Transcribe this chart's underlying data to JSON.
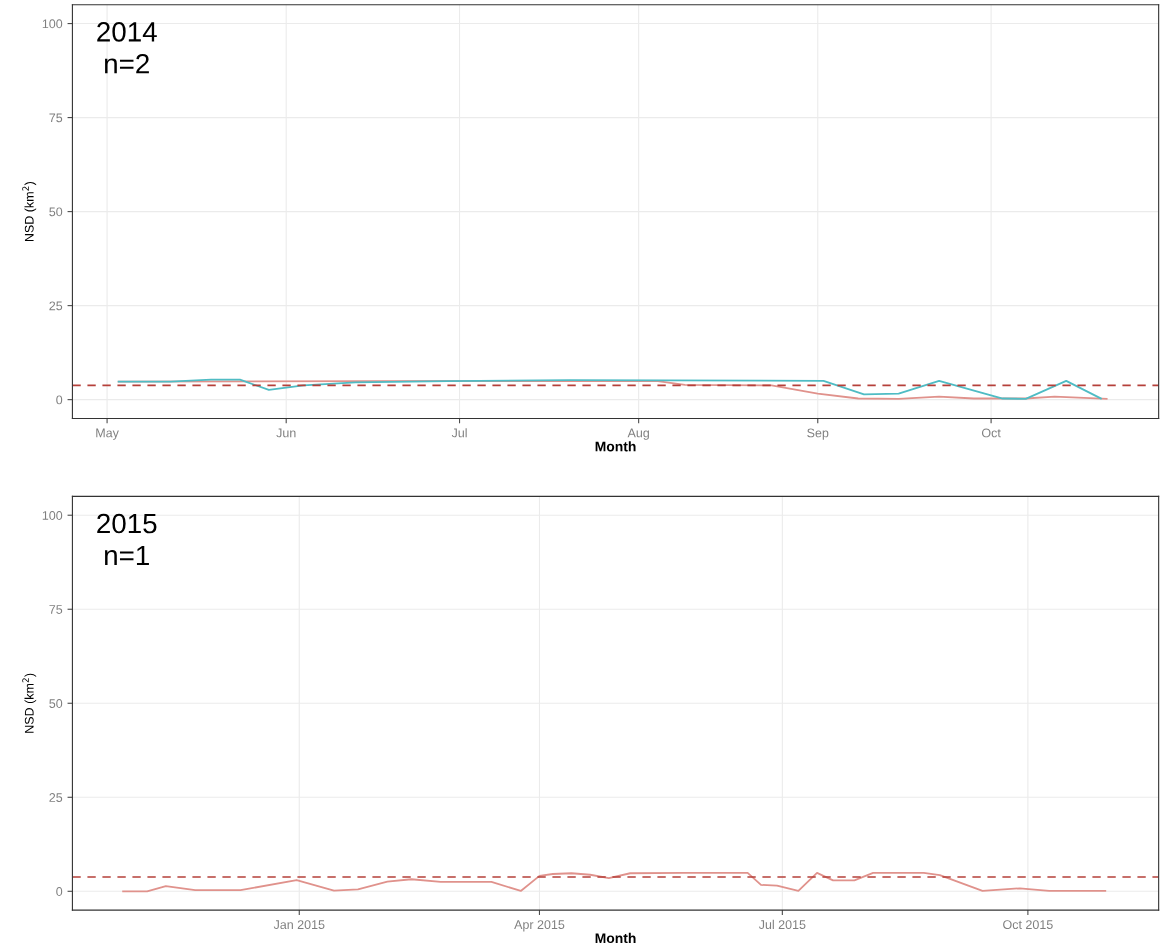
{
  "chart_data": [
    {
      "type": "line",
      "annotations": [
        "2014\nn=2"
      ],
      "xlabel": "Month",
      "ylabel": "NSD (km$^{2}$)",
      "xlim": [
        "2014-04-25",
        "2014-10-30"
      ],
      "ylim": [
        -5,
        105
      ],
      "yticks": [
        0,
        25,
        50,
        75,
        100
      ],
      "xticks": [
        {
          "value": "2014-05-01",
          "label": "May"
        },
        {
          "value": "2014-06-01",
          "label": "Jun"
        },
        {
          "value": "2014-07-01",
          "label": "Jul"
        },
        {
          "value": "2014-08-01",
          "label": "Aug"
        },
        {
          "value": "2014-09-01",
          "label": "Sep"
        },
        {
          "value": "2014-10-01",
          "label": "Oct"
        }
      ],
      "grid": true,
      "legend": false,
      "ref_lines": [
        {
          "axis": "y",
          "value": 3.8,
          "color": "#b5403a",
          "line_style": "dashed"
        }
      ],
      "series": [
        {
          "color": "#e0928c",
          "x": [
            "2014-05-03",
            "2014-06-15",
            "2014-08-04",
            "2014-08-09",
            "2014-08-24",
            "2014-09-01",
            "2014-09-08",
            "2014-09-15",
            "2014-09-22",
            "2014-09-28",
            "2014-10-07",
            "2014-10-12",
            "2014-10-21"
          ],
          "values": [
            4.8,
            4.9,
            5.0,
            3.9,
            3.8,
            1.6,
            0.3,
            0.2,
            0.8,
            0.3,
            0.3,
            0.8,
            0.2
          ]
        },
        {
          "color": "#4fbcc4",
          "x": [
            "2014-05-03",
            "2014-05-12",
            "2014-05-19",
            "2014-05-24",
            "2014-05-29",
            "2014-06-04",
            "2014-06-13",
            "2014-06-29",
            "2014-07-20",
            "2014-09-02",
            "2014-09-09",
            "2014-09-15",
            "2014-09-22",
            "2014-10-03",
            "2014-10-07",
            "2014-10-14",
            "2014-10-20"
          ],
          "values": [
            4.8,
            4.8,
            5.3,
            5.3,
            2.6,
            3.8,
            4.6,
            4.9,
            5.2,
            5.0,
            1.4,
            1.6,
            5.0,
            0.3,
            0.2,
            5.0,
            0.3
          ]
        }
      ]
    },
    {
      "type": "line",
      "annotations": [
        "2015\nn=1"
      ],
      "xlabel": "Month",
      "ylabel": "NSD (km$^{2}$)",
      "xlim": [
        "2014-10-08",
        "2015-11-19"
      ],
      "ylim": [
        -5,
        105
      ],
      "yticks": [
        0,
        25,
        50,
        75,
        100
      ],
      "xticks": [
        {
          "value": "2015-01-01",
          "label": "Jan 2015"
        },
        {
          "value": "2015-04-01",
          "label": "Apr 2015"
        },
        {
          "value": "2015-07-01",
          "label": "Jul 2015"
        },
        {
          "value": "2015-10-01",
          "label": "Oct 2015"
        }
      ],
      "grid": true,
      "legend": false,
      "ref_lines": [
        {
          "axis": "y",
          "value": 3.8,
          "color": "#b5403a",
          "line_style": "dashed"
        }
      ],
      "series": [
        {
          "color": "#e0928c",
          "x": [
            "2014-10-27",
            "2014-11-05",
            "2014-11-12",
            "2014-11-23",
            "2014-12-10",
            "2014-12-31",
            "2015-01-14",
            "2015-01-23",
            "2015-02-03",
            "2015-02-12",
            "2015-02-23",
            "2015-03-14",
            "2015-03-25",
            "2015-04-01",
            "2015-04-06",
            "2015-04-13",
            "2015-04-20",
            "2015-04-27",
            "2015-05-05",
            "2015-05-25",
            "2015-06-18",
            "2015-06-23",
            "2015-06-29",
            "2015-07-07",
            "2015-07-14",
            "2015-07-20",
            "2015-07-28",
            "2015-08-04",
            "2015-08-23",
            "2015-08-29",
            "2015-09-14",
            "2015-09-28",
            "2015-10-09",
            "2015-10-30"
          ],
          "values": [
            0,
            0,
            1.4,
            0.3,
            0.3,
            3.0,
            0.2,
            0.5,
            2.6,
            3.2,
            2.5,
            2.5,
            0.1,
            4.1,
            4.6,
            4.8,
            4.4,
            3.5,
            4.8,
            4.9,
            4.9,
            1.7,
            1.5,
            0.1,
            4.9,
            2.9,
            2.9,
            4.9,
            4.9,
            4.3,
            0.1,
            0.8,
            0.1,
            0.1
          ]
        }
      ]
    }
  ]
}
